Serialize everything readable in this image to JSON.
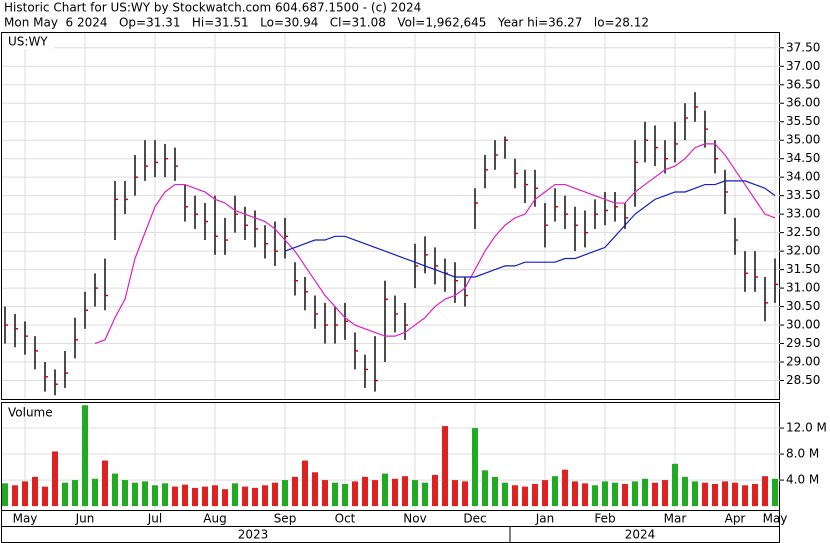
{
  "header": {
    "title": "Historic Chart for US:WY by Stockwatch.com 604.687.1500 - (c) 2024",
    "subtitle": "Mon May  6 2024   Op=31.31   Hi=31.51   Lo=30.94   Cl=31.08   Vol=1,962,645   Year hi=36.27   lo=28.12"
  },
  "chart_data": [
    {
      "type": "ohlc",
      "title": "US:WY",
      "bar_color": "#000000",
      "close_color": "#cc0000",
      "grid": true,
      "categories": [
        null,
        null,
        "May",
        null,
        null,
        null,
        null,
        null,
        "Jun",
        null,
        null,
        null,
        null,
        null,
        null,
        "Jul",
        null,
        null,
        null,
        null,
        null,
        "Aug",
        null,
        null,
        null,
        null,
        null,
        null,
        "Sep",
        null,
        null,
        null,
        null,
        null,
        "Oct",
        null,
        null,
        null,
        null,
        null,
        null,
        "Nov",
        null,
        null,
        null,
        null,
        null,
        "Dec",
        null,
        null,
        null,
        null,
        null,
        null,
        "Jan",
        null,
        null,
        null,
        null,
        null,
        "Feb",
        null,
        null,
        null,
        null,
        null,
        null,
        "Mar",
        null,
        null,
        null,
        null,
        null,
        "Apr",
        null,
        null,
        null,
        "May"
      ],
      "years": [
        "2023",
        "2024"
      ],
      "high": [
        30.5,
        30.3,
        30.1,
        29.7,
        29.0,
        28.8,
        29.3,
        30.2,
        30.9,
        31.4,
        31.8,
        33.9,
        33.9,
        34.6,
        35.0,
        35.0,
        34.9,
        34.8,
        33.8,
        33.5,
        33.3,
        33.5,
        32.9,
        33.5,
        33.2,
        33.1,
        32.7,
        32.8,
        32.9,
        31.7,
        31.3,
        30.8,
        30.6,
        30.5,
        30.6,
        29.8,
        29.2,
        29.7,
        31.2,
        30.8,
        30.6,
        32.2,
        32.4,
        32.1,
        31.8,
        31.7,
        31.3,
        33.7,
        34.6,
        35.0,
        35.1,
        34.5,
        34.2,
        34.2,
        33.3,
        33.7,
        33.5,
        33.2,
        33.1,
        33.4,
        33.6,
        33.6,
        33.3,
        35.0,
        35.5,
        35.4,
        35.0,
        35.5,
        36.0,
        36.3,
        35.8,
        35.0,
        34.2,
        32.9,
        32.0,
        32.0,
        31.3,
        31.8
      ],
      "low": [
        29.5,
        29.4,
        29.2,
        28.8,
        28.2,
        28.1,
        28.3,
        29.1,
        29.9,
        30.5,
        30.4,
        32.3,
        33.0,
        33.5,
        33.9,
        34.0,
        34.0,
        33.9,
        32.8,
        32.6,
        32.3,
        31.9,
        31.9,
        32.5,
        32.3,
        32.1,
        31.8,
        31.6,
        31.8,
        30.8,
        30.4,
        29.9,
        29.5,
        29.5,
        29.6,
        28.8,
        28.3,
        28.2,
        29.0,
        29.8,
        29.6,
        31.0,
        31.4,
        31.1,
        30.9,
        30.6,
        30.5,
        32.6,
        33.7,
        34.2,
        34.5,
        33.7,
        33.3,
        33.2,
        32.1,
        32.8,
        32.6,
        32.0,
        32.1,
        32.6,
        32.7,
        32.8,
        32.6,
        33.2,
        34.4,
        34.3,
        34.1,
        34.4,
        35.0,
        35.5,
        34.8,
        34.1,
        33.0,
        31.9,
        30.9,
        30.9,
        30.1,
        30.6
      ],
      "close": [
        30.0,
        29.9,
        29.7,
        29.3,
        28.6,
        28.4,
        28.7,
        29.6,
        30.4,
        31.0,
        30.8,
        33.4,
        33.4,
        34.0,
        34.3,
        34.4,
        34.5,
        34.3,
        33.2,
        33.0,
        32.8,
        32.4,
        32.3,
        33.0,
        32.7,
        32.6,
        32.2,
        32.0,
        32.4,
        31.2,
        30.9,
        30.3,
        30.0,
        30.0,
        30.1,
        29.3,
        28.8,
        28.5,
        30.7,
        30.3,
        30.0,
        31.6,
        31.9,
        31.6,
        31.4,
        31.2,
        30.8,
        33.3,
        34.2,
        34.6,
        35.0,
        34.1,
        33.8,
        33.7,
        32.7,
        33.2,
        33.0,
        32.7,
        32.5,
        33.0,
        33.1,
        33.2,
        32.9,
        34.4,
        35.0,
        34.8,
        34.5,
        34.9,
        35.6,
        35.9,
        35.3,
        34.5,
        33.6,
        32.3,
        31.4,
        31.3,
        30.6,
        31.1
      ],
      "series": [
        {
          "color": "#e020c0",
          "values": [
            null,
            null,
            null,
            null,
            null,
            null,
            null,
            null,
            null,
            29.5,
            29.6,
            30.2,
            30.7,
            31.8,
            32.5,
            33.2,
            33.6,
            33.8,
            33.8,
            33.7,
            33.6,
            33.4,
            33.3,
            33.1,
            33.0,
            32.9,
            32.8,
            32.6,
            32.3,
            32.0,
            31.6,
            31.2,
            30.8,
            30.5,
            30.2,
            30.0,
            29.9,
            29.8,
            29.7,
            29.7,
            29.8,
            30.0,
            30.2,
            30.5,
            30.7,
            30.8,
            31.0,
            31.5,
            32.0,
            32.4,
            32.7,
            32.9,
            33.0,
            33.4,
            33.6,
            33.8,
            33.8,
            33.7,
            33.6,
            33.5,
            33.4,
            33.3,
            33.3,
            33.6,
            33.8,
            34.0,
            34.2,
            34.3,
            34.5,
            34.8,
            34.9,
            34.9,
            34.6,
            34.2,
            33.8,
            33.4,
            33.0,
            32.9
          ]
        },
        {
          "color": "#1020c0",
          "values": [
            null,
            null,
            null,
            null,
            null,
            null,
            null,
            null,
            null,
            null,
            null,
            null,
            null,
            null,
            null,
            null,
            null,
            null,
            null,
            null,
            null,
            null,
            null,
            null,
            null,
            null,
            null,
            null,
            32.0,
            32.1,
            32.2,
            32.3,
            32.3,
            32.4,
            32.4,
            32.3,
            32.2,
            32.1,
            32.0,
            31.9,
            31.8,
            31.7,
            31.6,
            31.5,
            31.4,
            31.3,
            31.3,
            31.3,
            31.4,
            31.5,
            31.6,
            31.6,
            31.7,
            31.7,
            31.7,
            31.7,
            31.8,
            31.8,
            31.9,
            32.0,
            32.1,
            32.4,
            32.7,
            33.0,
            33.2,
            33.4,
            33.5,
            33.6,
            33.6,
            33.7,
            33.8,
            33.8,
            33.9,
            33.9,
            33.9,
            33.8,
            33.7,
            33.5
          ]
        }
      ],
      "ylim": [
        28.0,
        37.9
      ],
      "yticks": [
        {
          "value": 28.5,
          "label": "28.50"
        },
        {
          "value": 29,
          "label": "29.00"
        },
        {
          "value": 29.5,
          "label": "29.50"
        },
        {
          "value": 30,
          "label": "30.00"
        },
        {
          "value": 30.5,
          "label": "30.50"
        },
        {
          "value": 31,
          "label": "31.00"
        },
        {
          "value": 31.5,
          "label": "31.50"
        },
        {
          "value": 32,
          "label": "32.00"
        },
        {
          "value": 32.5,
          "label": "32.50"
        },
        {
          "value": 33,
          "label": "33.00"
        },
        {
          "value": 33.5,
          "label": "33.50"
        },
        {
          "value": 34,
          "label": "34.00"
        },
        {
          "value": 34.5,
          "label": "34.50"
        },
        {
          "value": 35,
          "label": "35.00"
        },
        {
          "value": 35.5,
          "label": "35.50"
        },
        {
          "value": 36,
          "label": "36.00"
        },
        {
          "value": 36.5,
          "label": "36.50"
        },
        {
          "value": 37,
          "label": "37.00"
        },
        {
          "value": 37.5,
          "label": "37.50"
        }
      ]
    },
    {
      "type": "bar",
      "title": "Volume",
      "up_color": "#22aa22",
      "down_color": "#dd2222",
      "grid": true,
      "values": [
        3.5,
        3.2,
        3.8,
        4.5,
        3.0,
        8.4,
        3.6,
        4.0,
        15.5,
        4.2,
        7.0,
        5.0,
        4.0,
        3.6,
        3.8,
        3.2,
        3.5,
        3.0,
        3.3,
        2.8,
        3.0,
        3.2,
        2.6,
        3.5,
        3.0,
        2.8,
        3.2,
        3.6,
        4.0,
        4.5,
        7.0,
        5.2,
        4.0,
        3.6,
        3.4,
        3.8,
        4.5,
        4.0,
        5.0,
        4.2,
        4.6,
        4.0,
        3.6,
        4.8,
        12.3,
        4.0,
        3.8,
        12.0,
        5.5,
        4.5,
        3.6,
        3.2,
        3.0,
        3.4,
        4.0,
        4.6,
        5.6,
        3.8,
        3.5,
        3.2,
        3.8,
        3.6,
        3.4,
        3.8,
        4.2,
        3.6,
        4.0,
        6.5,
        4.5,
        3.8,
        3.6,
        3.4,
        3.8,
        3.6,
        3.2,
        3.4,
        4.6,
        4.2
      ],
      "ylim": [
        -0.6,
        15.85
      ],
      "yticks": [
        {
          "value": 4,
          "label": "4.0 M"
        },
        {
          "value": 8,
          "label": "8.0 M"
        },
        {
          "value": 12,
          "label": "12.0 M"
        }
      ]
    }
  ]
}
